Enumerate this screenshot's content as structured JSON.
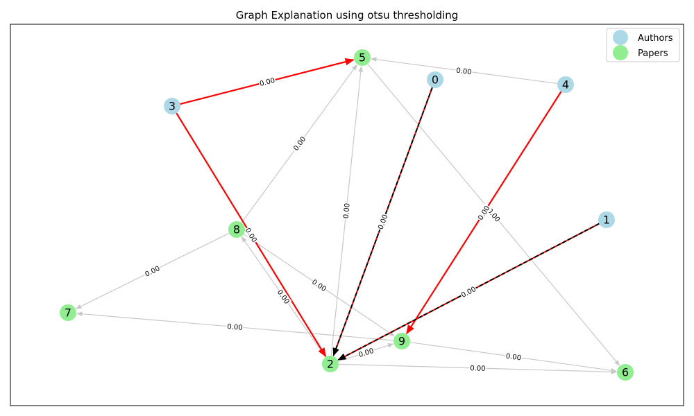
{
  "title": "Graph Explanation using otsu thresholding",
  "legend": {
    "items": [
      {
        "label": "Authors",
        "color": "#add8e6"
      },
      {
        "label": "Papers",
        "color": "#90ee90"
      }
    ]
  },
  "colors": {
    "author": "#add8e6",
    "paper": "#90ee90",
    "edge_gray": "#c8c8c8",
    "edge_highlight": "#ff0000",
    "edge_dashed": "#000000"
  },
  "nodes": [
    {
      "id": "0",
      "type": "author"
    },
    {
      "id": "1",
      "type": "author"
    },
    {
      "id": "2",
      "type": "paper"
    },
    {
      "id": "3",
      "type": "author"
    },
    {
      "id": "4",
      "type": "author"
    },
    {
      "id": "5",
      "type": "paper"
    },
    {
      "id": "6",
      "type": "paper"
    },
    {
      "id": "7",
      "type": "paper"
    },
    {
      "id": "8",
      "type": "paper"
    },
    {
      "id": "9",
      "type": "paper"
    }
  ],
  "edges": [
    {
      "source": "4",
      "target": "5",
      "weight": "0.00",
      "style": "gray"
    },
    {
      "source": "8",
      "target": "5",
      "weight": "0.00",
      "style": "gray"
    },
    {
      "source": "2",
      "target": "5",
      "weight": "0.00",
      "style": "gray"
    },
    {
      "source": "5",
      "target": "6",
      "weight": "0.00",
      "style": "gray"
    },
    {
      "source": "8",
      "target": "7",
      "weight": "0.00",
      "style": "gray"
    },
    {
      "source": "9",
      "target": "7",
      "weight": "0.00",
      "style": "gray"
    },
    {
      "source": "8",
      "target": "9",
      "weight": "0.00",
      "style": "gray"
    },
    {
      "source": "2",
      "target": "8",
      "weight": "0.00",
      "style": "gray"
    },
    {
      "source": "2",
      "target": "9",
      "weight": "0.00",
      "style": "gray"
    },
    {
      "source": "9",
      "target": "6",
      "weight": "0.00",
      "style": "gray"
    },
    {
      "source": "2",
      "target": "6",
      "weight": "0.00",
      "style": "gray"
    },
    {
      "source": "3",
      "target": "5",
      "weight": "0.00",
      "style": "red"
    },
    {
      "source": "3",
      "target": "2",
      "weight": "0.00",
      "style": "red"
    },
    {
      "source": "4",
      "target": "9",
      "weight": "0.00",
      "style": "red"
    },
    {
      "source": "0",
      "target": "2",
      "weight": "0.00",
      "style": "dashed"
    },
    {
      "source": "1",
      "target": "2",
      "weight": "0.00",
      "style": "dashed"
    }
  ]
}
